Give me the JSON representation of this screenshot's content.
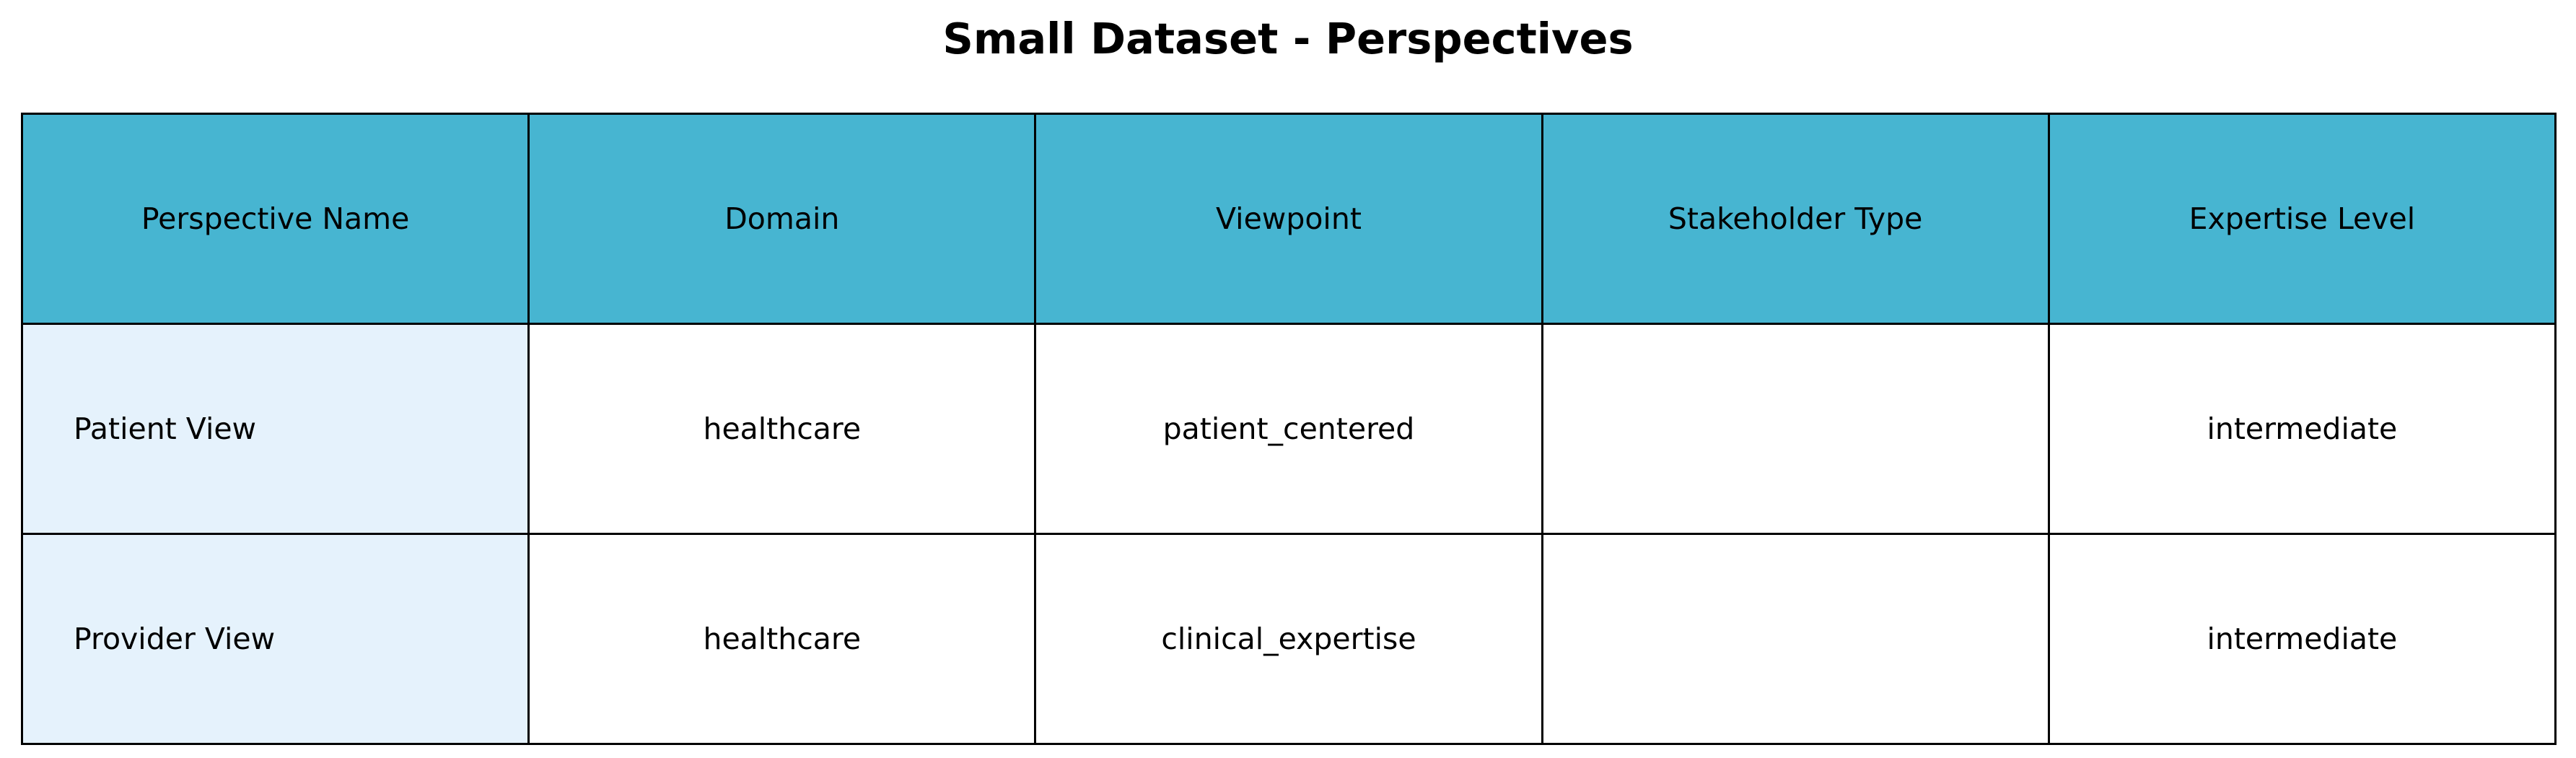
{
  "chart_data": {
    "type": "table",
    "title": "Small Dataset - Perspectives",
    "columns": [
      "Perspective Name",
      "Domain",
      "Viewpoint",
      "Stakeholder Type",
      "Expertise Level"
    ],
    "rows": [
      [
        "Patient View",
        "healthcare",
        "patient_centered",
        "",
        "intermediate"
      ],
      [
        "Provider View",
        "healthcare",
        "clinical_expertise",
        "",
        "intermediate"
      ]
    ],
    "colors": {
      "header_bg": "#47b5d1",
      "first_column_bg": "#e5f2fc",
      "cell_bg": "#ffffff",
      "border": "#000000"
    }
  }
}
